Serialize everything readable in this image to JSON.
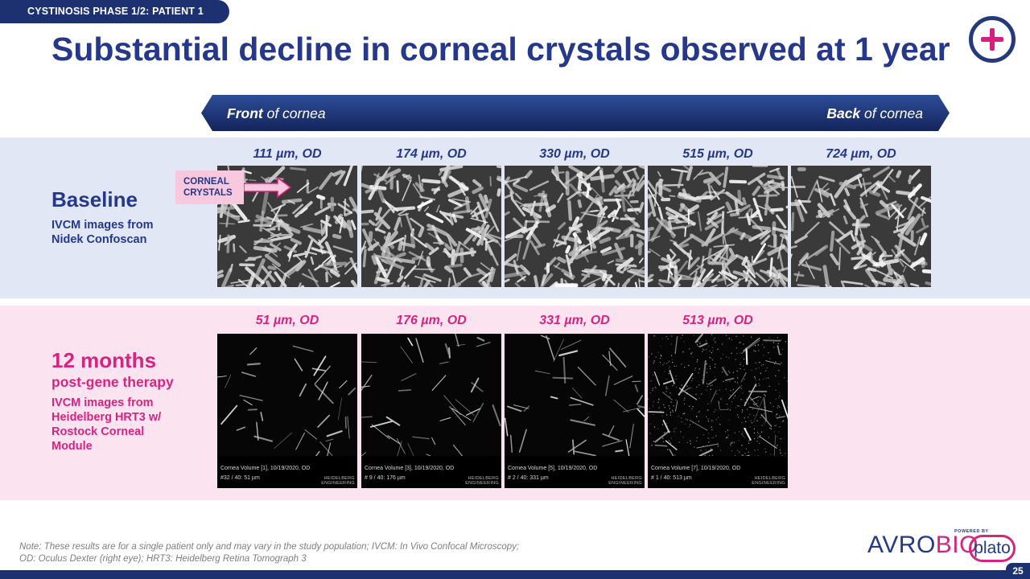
{
  "header": {
    "section_tag": "CYSTINOSIS PHASE 1/2: PATIENT 1",
    "title": "Substantial decline in corneal crystals observed at 1 year"
  },
  "depth_arrow": {
    "left_bold": "Front",
    "left_rest": " of cornea",
    "right_bold": "Back",
    "right_rest": " of cornea"
  },
  "baseline": {
    "title": "Baseline",
    "subtitle_line1": "IVCM images from",
    "subtitle_line2": "Nidek Confoscan",
    "callout_line1": "CORNEAL",
    "callout_line2": "CRYSTALS",
    "images": [
      {
        "label": "111 µm, OD"
      },
      {
        "label": "174 µm, OD"
      },
      {
        "label": "330 µm, OD"
      },
      {
        "label": "515 µm, OD"
      },
      {
        "label": "724 µm, OD"
      }
    ]
  },
  "post_therapy": {
    "title": "12 months",
    "title2": "post-gene therapy",
    "subtitle_line1": "IVCM images from",
    "subtitle_line2": "Heidelberg HRT3 w/",
    "subtitle_line3": "Rostock Corneal",
    "subtitle_line4": "Module",
    "brand_line1": "HEIDELBERG",
    "brand_line2": "ENGINEERING",
    "images": [
      {
        "label": "51 µm, OD",
        "meta1": "Cornea Volume [1],   10/19/2020,   OD",
        "meta2": "#32 / 40:   51 µm"
      },
      {
        "label": "176 µm, OD",
        "meta1": "Cornea Volume [3],   10/19/2020,   OD",
        "meta2": "# 9 / 40:   176 µm"
      },
      {
        "label": "331 µm, OD",
        "meta1": "Cornea Volume [5],   10/19/2020,   OD",
        "meta2": "# 2 / 40:   331 µm"
      },
      {
        "label": "513 µm, OD",
        "meta1": "Cornea Volume [7],   10/19/2020,   OD",
        "meta2": "# 1 / 40:   513 µm"
      }
    ]
  },
  "footnote": {
    "line1": "Note: These results are for a single patient only and may vary in the study population; IVCM: In Vivo Confocal Microscopy;",
    "line2": "OD: Oculus Dexter (right eye); HRT3: Heidelberg Retina Tomograph 3"
  },
  "branding": {
    "avro": "AVRO",
    "bio": "BIO",
    "powered_by": "POWERED BY",
    "plato": "plato"
  },
  "page_number": "25",
  "colors": {
    "navy": "#1d3170",
    "title_blue": "#25388a",
    "magenta": "#d6247f",
    "baseline_band": "#e2e7f5",
    "post_band": "#fbe3f0",
    "callout_pink": "#f8c8df"
  }
}
